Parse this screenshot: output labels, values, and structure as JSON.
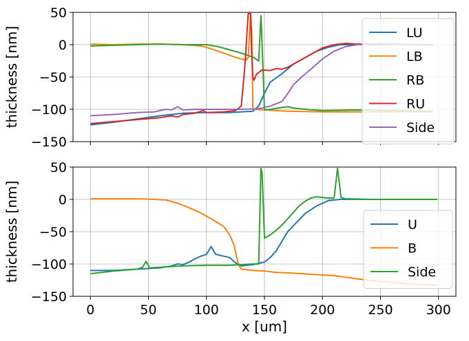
{
  "chart_data": [
    {
      "type": "line",
      "title": "",
      "xlabel": "",
      "ylabel": "thickness [nm]",
      "xlim": [
        -15,
        315
      ],
      "ylim": [
        -150,
        50
      ],
      "xticks": [
        0,
        50,
        100,
        150,
        200,
        250,
        300
      ],
      "yticks": [
        -150,
        -100,
        -50,
        0,
        50
      ],
      "show_x_tick_labels": false,
      "grid": true,
      "legend_position": "right",
      "series": [
        {
          "name": "LU",
          "color": "#1f77b4",
          "points": [
            [
              0,
              -124
            ],
            [
              20,
              -120
            ],
            [
              40,
              -115
            ],
            [
              60,
              -110
            ],
            [
              80,
              -106
            ],
            [
              100,
              -105
            ],
            [
              110,
              -105
            ],
            [
              120,
              -105
            ],
            [
              130,
              -104
            ],
            [
              140,
              -103
            ],
            [
              145,
              -95
            ],
            [
              150,
              -75
            ],
            [
              155,
              -58
            ],
            [
              165,
              -45
            ],
            [
              175,
              -30
            ],
            [
              185,
              -20
            ],
            [
              195,
              -10
            ],
            [
              205,
              -4
            ],
            [
              215,
              0
            ],
            [
              225,
              0
            ],
            [
              235,
              1
            ],
            [
              245,
              0
            ],
            [
              255,
              0
            ],
            [
              265,
              1
            ],
            [
              275,
              0
            ],
            [
              285,
              0
            ],
            [
              295,
              0
            ]
          ]
        },
        {
          "name": "LB",
          "color": "#ff7f0e",
          "points": [
            [
              0,
              1
            ],
            [
              20,
              0
            ],
            [
              40,
              1
            ],
            [
              60,
              1
            ],
            [
              80,
              0
            ],
            [
              95,
              -2
            ],
            [
              100,
              -4
            ],
            [
              110,
              -10
            ],
            [
              118,
              -15
            ],
            [
              124,
              -19
            ],
            [
              130,
              -22
            ],
            [
              134,
              -24
            ],
            [
              136,
              -20
            ],
            [
              138,
              48
            ],
            [
              139,
              20
            ],
            [
              140,
              -100
            ],
            [
              150,
              -101
            ],
            [
              170,
              -103
            ],
            [
              200,
              -104
            ],
            [
              230,
              -104
            ],
            [
              260,
              -104
            ],
            [
              295,
              -104
            ]
          ]
        },
        {
          "name": "RB",
          "color": "#2ca02c",
          "points": [
            [
              0,
              -2
            ],
            [
              20,
              -1
            ],
            [
              40,
              0
            ],
            [
              60,
              1
            ],
            [
              80,
              0
            ],
            [
              100,
              0
            ],
            [
              110,
              -3
            ],
            [
              120,
              -8
            ],
            [
              130,
              -13
            ],
            [
              135,
              -16
            ],
            [
              138,
              -18
            ],
            [
              141,
              -20
            ],
            [
              143,
              -23
            ],
            [
              145,
              -25
            ],
            [
              147,
              45
            ],
            [
              148,
              0
            ],
            [
              150,
              -101
            ],
            [
              155,
              -100
            ],
            [
              165,
              -97
            ],
            [
              170,
              -96
            ],
            [
              175,
              -98
            ],
            [
              185,
              -100
            ],
            [
              200,
              -102
            ],
            [
              230,
              -101
            ],
            [
              260,
              -102
            ],
            [
              295,
              -103
            ]
          ]
        },
        {
          "name": "RU",
          "color": "#d62728",
          "points": [
            [
              0,
              -122
            ],
            [
              20,
              -119
            ],
            [
              40,
              -116
            ],
            [
              60,
              -113
            ],
            [
              70,
              -110
            ],
            [
              75,
              -112
            ],
            [
              80,
              -108
            ],
            [
              90,
              -106
            ],
            [
              97,
              -102
            ],
            [
              100,
              -105
            ],
            [
              115,
              -104
            ],
            [
              125,
              -102
            ],
            [
              130,
              -95
            ],
            [
              133,
              -35
            ],
            [
              134,
              -10
            ],
            [
              135,
              20
            ],
            [
              136,
              48
            ],
            [
              138,
              48
            ],
            [
              139,
              -15
            ],
            [
              140,
              -50
            ],
            [
              141,
              -55
            ],
            [
              143,
              -46
            ],
            [
              148,
              -39
            ],
            [
              155,
              -40
            ],
            [
              160,
              -37
            ],
            [
              165,
              -38
            ],
            [
              170,
              -35
            ],
            [
              180,
              -25
            ],
            [
              190,
              -15
            ],
            [
              200,
              -5
            ],
            [
              210,
              0
            ],
            [
              220,
              2
            ],
            [
              230,
              1
            ],
            [
              245,
              1
            ],
            [
              260,
              1
            ],
            [
              275,
              0
            ],
            [
              295,
              0
            ]
          ]
        },
        {
          "name": "Side",
          "color": "#9467bd",
          "points": [
            [
              0,
              -110
            ],
            [
              20,
              -108
            ],
            [
              40,
              -105
            ],
            [
              55,
              -104
            ],
            [
              60,
              -102
            ],
            [
              65,
              -100
            ],
            [
              70,
              -101
            ],
            [
              75,
              -96
            ],
            [
              80,
              -101
            ],
            [
              90,
              -100
            ],
            [
              110,
              -100
            ],
            [
              130,
              -100
            ],
            [
              145,
              -99
            ],
            [
              155,
              -95
            ],
            [
              165,
              -88
            ],
            [
              170,
              -76
            ],
            [
              175,
              -62
            ],
            [
              182,
              -50
            ],
            [
              190,
              -38
            ],
            [
              200,
              -22
            ],
            [
              210,
              -10
            ],
            [
              220,
              -3
            ],
            [
              230,
              0
            ],
            [
              245,
              0
            ],
            [
              260,
              1
            ],
            [
              275,
              0
            ],
            [
              295,
              -1
            ]
          ]
        }
      ]
    },
    {
      "type": "line",
      "title": "",
      "xlabel": "x [um]",
      "ylabel": "thickness [nm]",
      "xlim": [
        -15,
        315
      ],
      "ylim": [
        -150,
        50
      ],
      "xticks": [
        0,
        50,
        100,
        150,
        200,
        250,
        300
      ],
      "yticks": [
        -150,
        -100,
        -50,
        0,
        50
      ],
      "show_x_tick_labels": true,
      "grid": true,
      "legend_position": "lower right",
      "series": [
        {
          "name": "U",
          "color": "#1f77b4",
          "points": [
            [
              0,
              -110
            ],
            [
              20,
              -110
            ],
            [
              40,
              -108
            ],
            [
              60,
              -106
            ],
            [
              70,
              -103
            ],
            [
              75,
              -100
            ],
            [
              80,
              -101
            ],
            [
              85,
              -97
            ],
            [
              90,
              -92
            ],
            [
              95,
              -88
            ],
            [
              100,
              -85
            ],
            [
              104,
              -73
            ],
            [
              108,
              -85
            ],
            [
              115,
              -88
            ],
            [
              120,
              -90
            ],
            [
              125,
              -98
            ],
            [
              130,
              -103
            ],
            [
              140,
              -101
            ],
            [
              150,
              -97
            ],
            [
              155,
              -90
            ],
            [
              160,
              -80
            ],
            [
              165,
              -65
            ],
            [
              170,
              -50
            ],
            [
              178,
              -35
            ],
            [
              185,
              -22
            ],
            [
              195,
              -10
            ],
            [
              205,
              -2
            ],
            [
              215,
              0
            ],
            [
              225,
              0
            ],
            [
              240,
              0
            ],
            [
              260,
              0
            ],
            [
              280,
              0
            ],
            [
              299,
              0
            ]
          ]
        },
        {
          "name": "B",
          "color": "#ff7f0e",
          "points": [
            [
              0,
              1
            ],
            [
              20,
              1
            ],
            [
              40,
              1
            ],
            [
              55,
              0
            ],
            [
              65,
              -1
            ],
            [
              75,
              -6
            ],
            [
              85,
              -13
            ],
            [
              95,
              -21
            ],
            [
              105,
              -31
            ],
            [
              115,
              -42
            ],
            [
              120,
              -55
            ],
            [
              124,
              -72
            ],
            [
              126,
              -90
            ],
            [
              128,
              -102
            ],
            [
              130,
              -108
            ],
            [
              140,
              -110
            ],
            [
              150,
              -111
            ],
            [
              160,
              -113
            ],
            [
              175,
              -114
            ],
            [
              190,
              -116
            ],
            [
              210,
              -118
            ],
            [
              230,
              -123
            ],
            [
              250,
              -127
            ],
            [
              270,
              -130
            ],
            [
              285,
              -132
            ],
            [
              299,
              -133
            ]
          ]
        },
        {
          "name": "Side",
          "color": "#2ca02c",
          "points": [
            [
              0,
              -115
            ],
            [
              20,
              -111
            ],
            [
              40,
              -108
            ],
            [
              45,
              -105
            ],
            [
              48,
              -96
            ],
            [
              51,
              -106
            ],
            [
              60,
              -105
            ],
            [
              80,
              -103
            ],
            [
              100,
              -102
            ],
            [
              110,
              -102
            ],
            [
              120,
              -102
            ],
            [
              130,
              -101
            ],
            [
              140,
              -100
            ],
            [
              145,
              -100
            ],
            [
              147,
              48
            ],
            [
              148,
              40
            ],
            [
              150,
              -60
            ],
            [
              155,
              -55
            ],
            [
              160,
              -48
            ],
            [
              165,
              -40
            ],
            [
              170,
              -30
            ],
            [
              175,
              -20
            ],
            [
              180,
              -10
            ],
            [
              185,
              -3
            ],
            [
              190,
              2
            ],
            [
              195,
              4
            ],
            [
              200,
              3
            ],
            [
              205,
              2
            ],
            [
              210,
              2
            ],
            [
              213,
              48
            ],
            [
              216,
              3
            ],
            [
              220,
              1
            ],
            [
              240,
              0
            ],
            [
              260,
              0
            ],
            [
              280,
              0
            ],
            [
              299,
              0
            ]
          ]
        }
      ]
    }
  ]
}
